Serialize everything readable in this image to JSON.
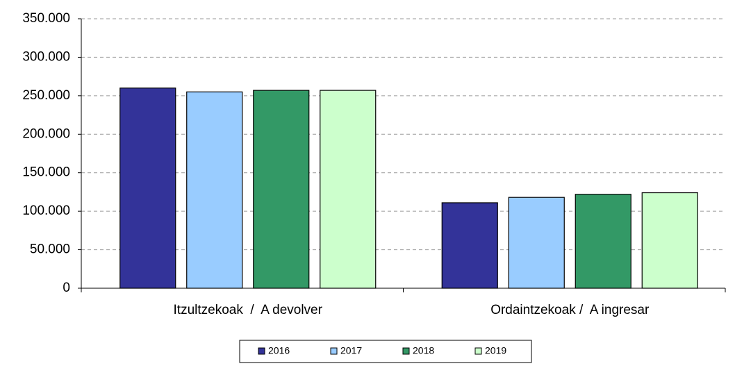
{
  "chart_data": {
    "type": "bar",
    "categories": [
      "Itzultzekoak  /  A devolver",
      "Ordaintzekoak /  A ingresar"
    ],
    "series": [
      {
        "name": "2016",
        "color": "#333399",
        "values": [
          260000,
          111000
        ]
      },
      {
        "name": "2017",
        "color": "#99ccff",
        "values": [
          255000,
          118000
        ]
      },
      {
        "name": "2018",
        "color": "#339966",
        "values": [
          257000,
          122000
        ]
      },
      {
        "name": "2019",
        "color": "#ccffcc",
        "values": [
          257000,
          124000
        ]
      }
    ],
    "ylim": [
      0,
      350000
    ],
    "yticks": [
      0,
      {
        "value": 50000,
        "label": "50.000"
      },
      {
        "value": 100000,
        "label": "100.000"
      },
      {
        "value": 150000,
        "label": "150.000"
      },
      {
        "value": 200000,
        "label": "200.000"
      },
      {
        "value": 250000,
        "label": "250.000"
      },
      {
        "value": 300000,
        "label": "300.000"
      },
      {
        "value": 350000,
        "label": "350.000"
      }
    ],
    "grid": true,
    "legend": "bottom"
  }
}
